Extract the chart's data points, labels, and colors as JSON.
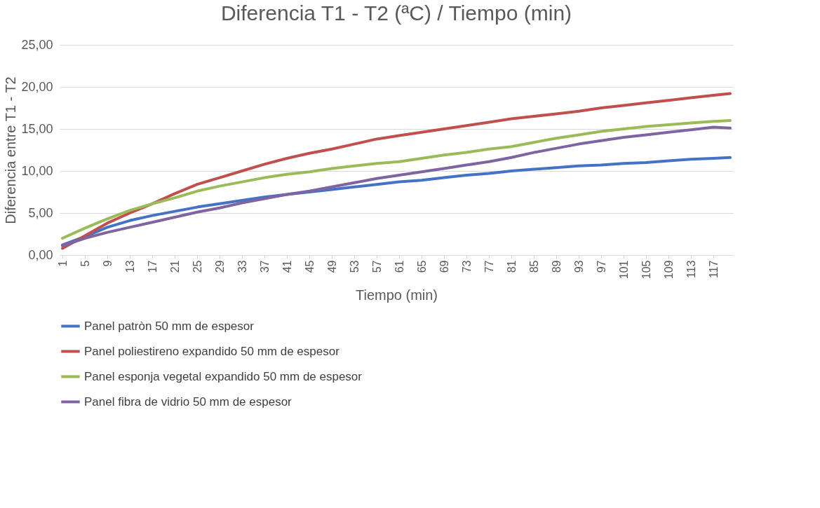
{
  "chart_data": {
    "type": "line",
    "title": "Diferencia T1 - T2 (ªC) / Tiempo (min)",
    "xlabel": "Tiempo (min)",
    "ylabel": "Diferencia entre T1 - T2",
    "x": [
      1,
      5,
      9,
      13,
      17,
      21,
      25,
      29,
      33,
      37,
      41,
      45,
      49,
      53,
      57,
      61,
      65,
      69,
      73,
      77,
      81,
      85,
      89,
      93,
      97,
      101,
      105,
      109,
      113,
      117,
      120
    ],
    "xlim": [
      0.5,
      120.5
    ],
    "xticks": [
      1,
      5,
      9,
      13,
      17,
      21,
      25,
      29,
      33,
      37,
      41,
      45,
      49,
      53,
      57,
      61,
      65,
      69,
      73,
      77,
      81,
      85,
      89,
      93,
      97,
      101,
      105,
      109,
      113,
      117
    ],
    "ylim": [
      0,
      25
    ],
    "yticks": [
      {
        "value": 0,
        "label": "0,00"
      },
      {
        "value": 5,
        "label": "5,00"
      },
      {
        "value": 10,
        "label": "10,00"
      },
      {
        "value": 15,
        "label": "15,00"
      },
      {
        "value": 20,
        "label": "20,00"
      },
      {
        "value": 25,
        "label": "25,00"
      }
    ],
    "grid": "y",
    "legend": "bottom",
    "marker": "none",
    "line_style": "solid",
    "series": [
      {
        "name": "Panel patròn 50 mm de espesor",
        "color": "#4472c4",
        "values": [
          1.2,
          2.2,
          3.3,
          4.1,
          4.7,
          5.2,
          5.7,
          6.1,
          6.5,
          6.9,
          7.2,
          7.5,
          7.8,
          8.1,
          8.4,
          8.7,
          8.9,
          9.2,
          9.5,
          9.7,
          10.0,
          10.2,
          10.4,
          10.6,
          10.7,
          10.9,
          11.0,
          11.2,
          11.4,
          11.5,
          11.6
        ]
      },
      {
        "name": "Panel poliestireno expandido 50 mm de espesor",
        "color": "#c0504d",
        "values": [
          0.8,
          2.3,
          3.8,
          5.0,
          6.1,
          7.3,
          8.4,
          9.2,
          10.0,
          10.8,
          11.5,
          12.1,
          12.6,
          13.2,
          13.8,
          14.2,
          14.6,
          15.0,
          15.4,
          15.8,
          16.2,
          16.5,
          16.8,
          17.1,
          17.5,
          17.8,
          18.1,
          18.4,
          18.7,
          19.0,
          19.2
        ]
      },
      {
        "name": "Panel esponja vegetal expandido 50 mm de espesor",
        "color": "#9bbb59",
        "values": [
          2.0,
          3.2,
          4.3,
          5.3,
          6.1,
          6.8,
          7.6,
          8.2,
          8.7,
          9.2,
          9.6,
          9.9,
          10.3,
          10.6,
          10.9,
          11.1,
          11.5,
          11.9,
          12.2,
          12.6,
          12.9,
          13.4,
          13.9,
          14.3,
          14.7,
          15.0,
          15.3,
          15.5,
          15.7,
          15.9,
          16.0
        ]
      },
      {
        "name": "Panel fibra de vidrio 50 mm de espesor",
        "color": "#8064a2",
        "values": [
          1.1,
          2.0,
          2.7,
          3.3,
          3.9,
          4.5,
          5.1,
          5.6,
          6.2,
          6.7,
          7.2,
          7.6,
          8.1,
          8.6,
          9.1,
          9.5,
          9.9,
          10.3,
          10.7,
          11.1,
          11.6,
          12.2,
          12.7,
          13.2,
          13.6,
          14.0,
          14.3,
          14.6,
          14.9,
          15.2,
          15.1
        ]
      }
    ]
  }
}
